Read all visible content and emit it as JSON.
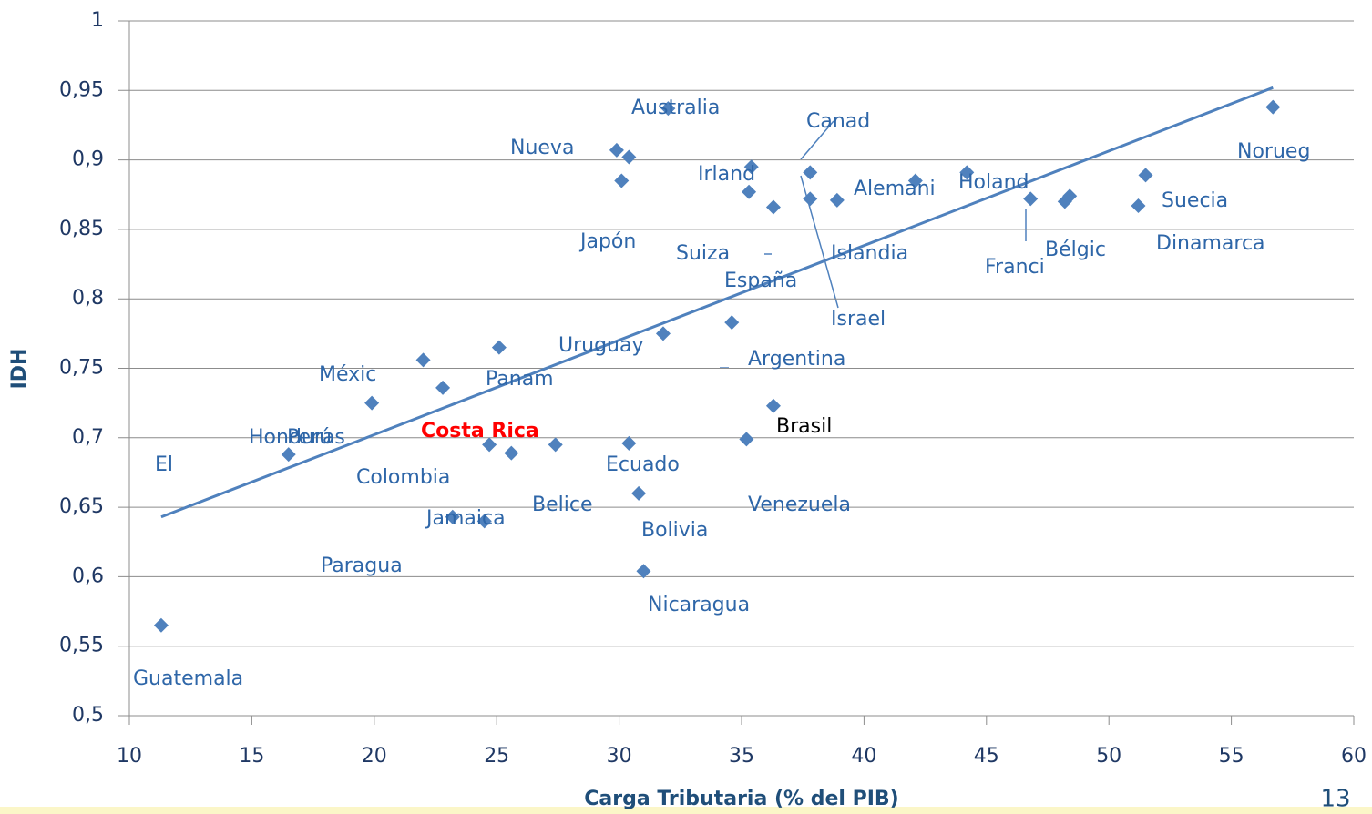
{
  "chart_data": {
    "type": "scatter",
    "x_label": "Carga Tributaria (% del PIB)",
    "y_label": "IDH",
    "xlim": [
      10,
      60
    ],
    "xticks": [
      10,
      15,
      20,
      25,
      30,
      35,
      40,
      45,
      50,
      55,
      60
    ],
    "ylim": [
      0.5,
      1
    ],
    "yticks": [
      {
        "value": 0.5,
        "label": "0,5"
      },
      {
        "value": 0.55,
        "label": "0,55"
      },
      {
        "value": 0.6,
        "label": "0,6"
      },
      {
        "value": 0.65,
        "label": "0,65"
      },
      {
        "value": 0.7,
        "label": "0,7"
      },
      {
        "value": 0.75,
        "label": "0,75"
      },
      {
        "value": 0.8,
        "label": "0,8"
      },
      {
        "value": 0.85,
        "label": "0,85"
      },
      {
        "value": 0.9,
        "label": "0,9"
      },
      {
        "value": 0.95,
        "label": "0,95"
      },
      1
    ],
    "grid": true,
    "series": [
      {
        "color": "#4f81bd",
        "x": [
          11.3,
          16.5,
          19.9,
          22.0,
          22.8,
          23.2,
          24.5,
          24.7,
          25.1,
          25.6,
          27.4,
          29.9,
          30.4,
          30.1,
          30.4,
          30.8,
          31.0,
          32.0,
          31.8,
          34.6,
          35.4,
          35.3,
          35.2,
          36.3,
          36.3,
          37.8,
          37.8,
          38.9,
          42.1,
          44.2,
          46.8,
          48.4,
          48.2,
          51.2,
          51.5,
          56.7
        ],
        "values": [
          0.565,
          0.688,
          0.725,
          0.756,
          0.736,
          0.643,
          0.64,
          0.695,
          0.765,
          0.689,
          0.695,
          0.907,
          0.902,
          0.885,
          0.696,
          0.66,
          0.604,
          0.937,
          0.775,
          0.783,
          0.895,
          0.877,
          0.699,
          0.866,
          0.723,
          0.891,
          0.872,
          0.871,
          0.885,
          0.891,
          0.872,
          0.874,
          0.87,
          0.867,
          0.889,
          0.938
        ]
      }
    ],
    "trendline": {
      "color": "#4f81bd",
      "x": [
        11.3,
        56.7
      ],
      "y": [
        0.643,
        0.952
      ]
    },
    "annotations": [
      {
        "text": "Australia"
      },
      {
        "text": "Canad"
      },
      {
        "text": "Nueva"
      },
      {
        "text": "Norueg"
      },
      {
        "text": "Irland"
      },
      {
        "text": "Alemani"
      },
      {
        "text": "Holand"
      },
      {
        "text": "Suecia"
      },
      {
        "text": "Japón"
      },
      {
        "text": "Suiza"
      },
      {
        "text": "Islandia"
      },
      {
        "text": "Bélgic"
      },
      {
        "text": "Dinamarca"
      },
      {
        "text": "Franci"
      },
      {
        "text": "España"
      },
      {
        "text": "Israel"
      },
      {
        "text": "Uruguay"
      },
      {
        "text": "Argentina"
      },
      {
        "text": "Méxic"
      },
      {
        "text": "Panam"
      },
      {
        "text": "Brasil",
        "color": "#000000"
      },
      {
        "text": "Costa Rica",
        "color": "#ff0000",
        "bold": true
      },
      {
        "text": "Honduras"
      },
      {
        "text": "Perú"
      },
      {
        "text": "El"
      },
      {
        "text": "Colombia"
      },
      {
        "text": "Ecuado"
      },
      {
        "text": "Belice"
      },
      {
        "text": "Venezuela"
      },
      {
        "text": "Jamaica"
      },
      {
        "text": "Bolivia"
      },
      {
        "text": "Paragua"
      },
      {
        "text": "Nicaragua"
      },
      {
        "text": "Guatemala"
      }
    ]
  },
  "page_number": 13
}
